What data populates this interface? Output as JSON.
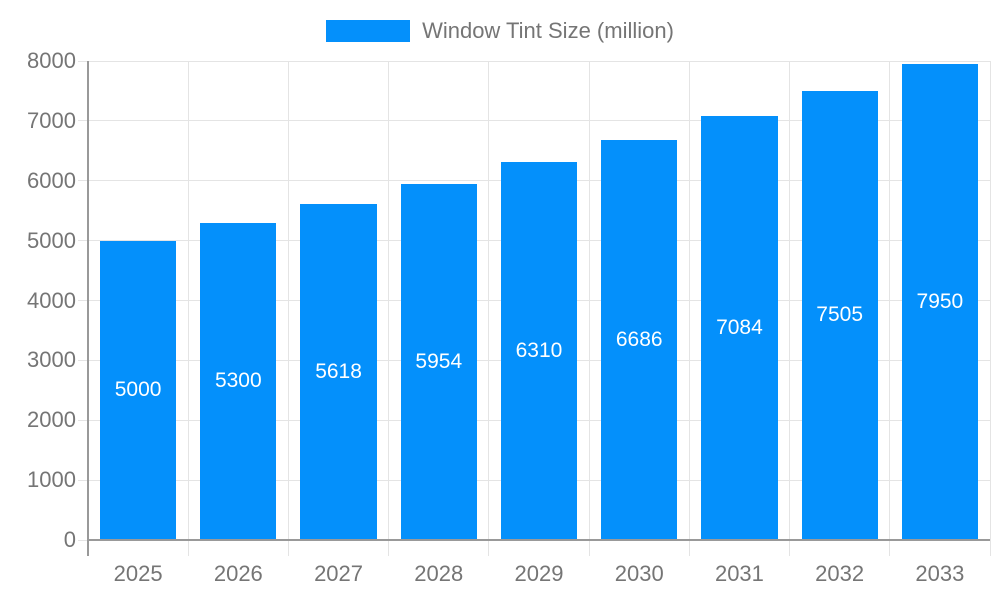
{
  "legend": {
    "label": "Window Tint Size (million)"
  },
  "colors": {
    "bar": "#0490FB",
    "axis": "#999999",
    "grid": "#e4e4e4",
    "label_text": "#757575",
    "bar_label_text": "#ffffff",
    "background": "#ffffff"
  },
  "chart_data": {
    "type": "bar",
    "title": "Window Tint Size (million)",
    "categories": [
      "2025",
      "2026",
      "2027",
      "2028",
      "2029",
      "2030",
      "2031",
      "2032",
      "2033"
    ],
    "series": [
      {
        "name": "Window Tint Size (million)",
        "values": [
          5000,
          5300,
          5618,
          5954,
          6310,
          6686,
          7084,
          7505,
          7950
        ]
      }
    ],
    "data_labels": [
      "5000",
      "5300",
      "5618",
      "5954",
      "6310",
      "6686",
      "7084",
      "7505",
      "7950"
    ],
    "xlabel": "",
    "ylabel": "",
    "ylim": [
      0,
      8000
    ],
    "ytick_step": 1000,
    "ytick_labels": [
      "0",
      "1000",
      "2000",
      "3000",
      "4000",
      "5000",
      "6000",
      "7000",
      "8000"
    ],
    "grid": "on",
    "legend_position": "top-center"
  }
}
